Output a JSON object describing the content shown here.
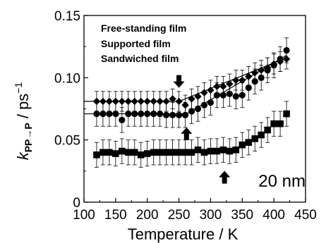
{
  "chart_data": {
    "type": "scatter",
    "xlabel": "Temperature / K",
    "ylabel": {
      "main": "k",
      "sub": "PP→P",
      "unit": " / ps",
      "exponent": "−1"
    },
    "xlim": [
      100,
      450
    ],
    "ylim": [
      0,
      0.15
    ],
    "xticks": [
      "100",
      "150",
      "200",
      "250",
      "300",
      "350",
      "400",
      "450"
    ],
    "yticks": [
      "0",
      "0.05",
      "0.10",
      "0.15"
    ],
    "legend": [
      "Free-standing film",
      "Supported film",
      "Sandwiched film"
    ],
    "legend_position": "top-left",
    "annotation": "20 nm",
    "series": [
      {
        "name": "Free-standing film",
        "marker": "diamond",
        "x": [
          120,
          130,
          140,
          150,
          160,
          170,
          180,
          190,
          200,
          210,
          220,
          230,
          240,
          250,
          260,
          270,
          280,
          290,
          300,
          310,
          320,
          330,
          340,
          350,
          360,
          370,
          380,
          390,
          400,
          410,
          420
        ],
        "y": [
          0.081,
          0.081,
          0.081,
          0.081,
          0.081,
          0.081,
          0.081,
          0.081,
          0.081,
          0.081,
          0.081,
          0.081,
          0.083,
          0.081,
          0.078,
          0.083,
          0.085,
          0.088,
          0.09,
          0.093,
          0.093,
          0.095,
          0.098,
          0.098,
          0.101,
          0.104,
          0.106,
          0.108,
          0.111,
          0.113,
          0.115
        ],
        "err": 0.008,
        "fit": [
          [
            100,
            0.081
          ],
          [
            250,
            0.081
          ],
          [
            420,
            0.116
          ]
        ]
      },
      {
        "name": "Supported film",
        "marker": "circle",
        "x": [
          120,
          130,
          140,
          150,
          160,
          170,
          180,
          190,
          200,
          210,
          220,
          230,
          240,
          250,
          260,
          270,
          280,
          290,
          300,
          310,
          320,
          330,
          340,
          350,
          360,
          370,
          380,
          390,
          400,
          410,
          420
        ],
        "y": [
          0.071,
          0.071,
          0.071,
          0.071,
          0.066,
          0.071,
          0.071,
          0.071,
          0.071,
          0.071,
          0.071,
          0.07,
          0.07,
          0.07,
          0.07,
          0.073,
          0.075,
          0.078,
          0.08,
          0.086,
          0.086,
          0.087,
          0.085,
          0.086,
          0.092,
          0.097,
          0.1,
          0.106,
          0.11,
          0.115,
          0.122
        ],
        "err": 0.01,
        "fit": [
          [
            100,
            0.071
          ],
          [
            262,
            0.071
          ],
          [
            420,
            0.118
          ]
        ]
      },
      {
        "name": "Sandwiched film",
        "marker": "square",
        "x": [
          120,
          130,
          140,
          150,
          160,
          170,
          180,
          190,
          200,
          210,
          220,
          230,
          240,
          250,
          260,
          270,
          280,
          290,
          300,
          310,
          320,
          330,
          340,
          350,
          360,
          370,
          380,
          390,
          400,
          410,
          420
        ],
        "y": [
          0.038,
          0.04,
          0.04,
          0.039,
          0.041,
          0.04,
          0.04,
          0.038,
          0.039,
          0.04,
          0.04,
          0.04,
          0.04,
          0.04,
          0.04,
          0.04,
          0.042,
          0.04,
          0.041,
          0.041,
          0.042,
          0.041,
          0.042,
          0.046,
          0.048,
          0.051,
          0.054,
          0.058,
          0.063,
          0.063,
          0.071
        ],
        "err": 0.01
      }
    ],
    "arrows": [
      {
        "series": "Free-standing film",
        "x": 250,
        "y": 0.097,
        "direction": "down"
      },
      {
        "series": "Supported film",
        "x": 262,
        "y": 0.055,
        "direction": "up"
      },
      {
        "series": "Sandwiched film",
        "x": 322,
        "y": 0.02,
        "direction": "up"
      }
    ]
  }
}
